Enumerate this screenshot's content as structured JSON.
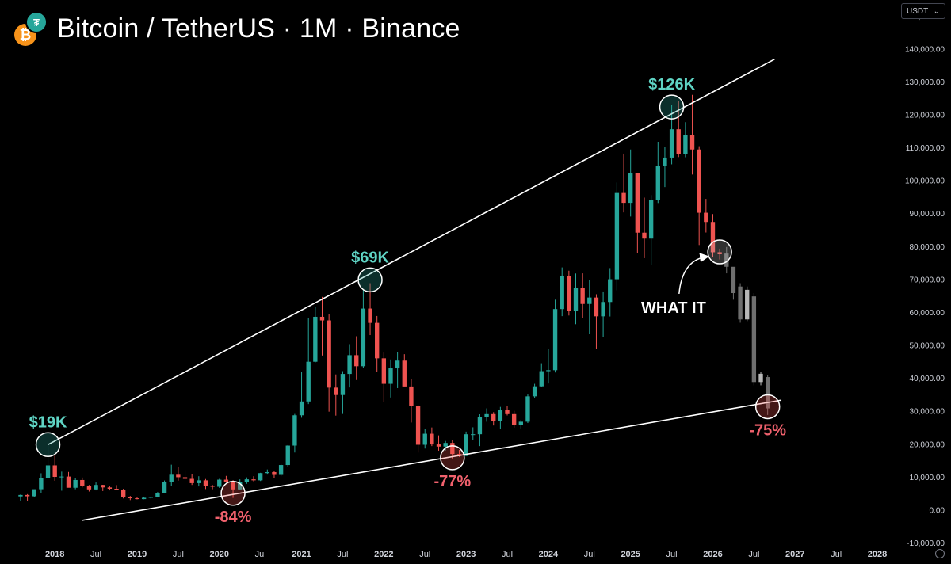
{
  "header": {
    "title": "Bitcoin / TetherUS · 1M · Binance",
    "base_logo": "bitcoin-logo-icon",
    "quote_logo": "tether-logo-icon"
  },
  "currency_selector": {
    "value": "USDT",
    "icon": "chevron-down-icon"
  },
  "settings_icon": "gear-icon",
  "colors": {
    "up": "#26a69a",
    "down": "#ef5350",
    "projection": "#8a8a8a",
    "trendline": "#ffffff",
    "peak_label": "#5fd4c4",
    "trough_label": "#f0616d",
    "background": "#000000"
  },
  "chart_data": {
    "type": "candlestick",
    "timeframe": "1M",
    "ylim": [
      -10000,
      155000
    ],
    "y_ticks": [
      "150,000.00",
      "140,000.00",
      "130,000.00",
      "120,000.00",
      "110,000.00",
      "100,000.00",
      "90,000.00",
      "80,000.00",
      "70,000.00",
      "60,000.00",
      "50,000.00",
      "40,000.00",
      "30,000.00",
      "20,000.00",
      "10,000.00",
      "0.00",
      "-10,000.00"
    ],
    "y_tick_values": [
      150000,
      140000,
      130000,
      120000,
      110000,
      100000,
      90000,
      80000,
      70000,
      60000,
      50000,
      40000,
      30000,
      20000,
      10000,
      0,
      -10000
    ],
    "x_ticks": [
      {
        "label": "2018",
        "date": "2018-01"
      },
      {
        "label": "Jul",
        "date": "2018-07"
      },
      {
        "label": "2019",
        "date": "2019-01"
      },
      {
        "label": "Jul",
        "date": "2019-07"
      },
      {
        "label": "2020",
        "date": "2020-01"
      },
      {
        "label": "Jul",
        "date": "2020-07"
      },
      {
        "label": "2021",
        "date": "2021-01"
      },
      {
        "label": "Jul",
        "date": "2021-07"
      },
      {
        "label": "2022",
        "date": "2022-01"
      },
      {
        "label": "Jul",
        "date": "2022-07"
      },
      {
        "label": "2023",
        "date": "2023-01"
      },
      {
        "label": "Jul",
        "date": "2023-07"
      },
      {
        "label": "2024",
        "date": "2024-01"
      },
      {
        "label": "Jul",
        "date": "2024-07"
      },
      {
        "label": "2025",
        "date": "2025-01"
      },
      {
        "label": "Jul",
        "date": "2025-07"
      },
      {
        "label": "2026",
        "date": "2026-01"
      },
      {
        "label": "Jul",
        "date": "2026-07"
      },
      {
        "label": "2027",
        "date": "2027-01"
      },
      {
        "label": "Jul",
        "date": "2027-07"
      },
      {
        "label": "2028",
        "date": "2028-01"
      }
    ],
    "x_range": [
      "2017-05",
      "2028-04"
    ],
    "candles": [
      {
        "t": "2017-08",
        "o": 4260,
        "h": 4850,
        "l": 2800,
        "c": 4700
      },
      {
        "t": "2017-09",
        "o": 4700,
        "h": 4950,
        "l": 2900,
        "c": 4300
      },
      {
        "t": "2017-10",
        "o": 4300,
        "h": 6400,
        "l": 4100,
        "c": 6450
      },
      {
        "t": "2017-11",
        "o": 6450,
        "h": 11300,
        "l": 5400,
        "c": 9900
      },
      {
        "t": "2017-12",
        "o": 9900,
        "h": 19800,
        "l": 9800,
        "c": 13700
      },
      {
        "t": "2018-01",
        "o": 13700,
        "h": 17200,
        "l": 9000,
        "c": 10200
      },
      {
        "t": "2018-02",
        "o": 10200,
        "h": 11800,
        "l": 6000,
        "c": 10300
      },
      {
        "t": "2018-03",
        "o": 10300,
        "h": 11700,
        "l": 7300,
        "c": 6900
      },
      {
        "t": "2018-04",
        "o": 6900,
        "h": 9750,
        "l": 6450,
        "c": 9250
      },
      {
        "t": "2018-05",
        "o": 9250,
        "h": 10000,
        "l": 7000,
        "c": 7500
      },
      {
        "t": "2018-06",
        "o": 7500,
        "h": 7750,
        "l": 5750,
        "c": 6400
      },
      {
        "t": "2018-07",
        "o": 6400,
        "h": 8500,
        "l": 6100,
        "c": 7750
      },
      {
        "t": "2018-08",
        "o": 7750,
        "h": 7800,
        "l": 5900,
        "c": 7000
      },
      {
        "t": "2018-09",
        "o": 7000,
        "h": 7400,
        "l": 6100,
        "c": 6600
      },
      {
        "t": "2018-10",
        "o": 6600,
        "h": 7700,
        "l": 6200,
        "c": 6350
      },
      {
        "t": "2018-11",
        "o": 6350,
        "h": 6600,
        "l": 3650,
        "c": 4000
      },
      {
        "t": "2018-12",
        "o": 4000,
        "h": 4400,
        "l": 3150,
        "c": 3700
      },
      {
        "t": "2019-01",
        "o": 3700,
        "h": 4150,
        "l": 3350,
        "c": 3450
      },
      {
        "t": "2019-02",
        "o": 3450,
        "h": 4200,
        "l": 3400,
        "c": 3850
      },
      {
        "t": "2019-03",
        "o": 3850,
        "h": 4150,
        "l": 3650,
        "c": 4100
      },
      {
        "t": "2019-04",
        "o": 4100,
        "h": 5600,
        "l": 4050,
        "c": 5350
      },
      {
        "t": "2019-05",
        "o": 5350,
        "h": 9100,
        "l": 5300,
        "c": 8550
      },
      {
        "t": "2019-06",
        "o": 8550,
        "h": 13900,
        "l": 7450,
        "c": 10850
      },
      {
        "t": "2019-07",
        "o": 10850,
        "h": 13150,
        "l": 9050,
        "c": 10100
      },
      {
        "t": "2019-08",
        "o": 10100,
        "h": 12300,
        "l": 9350,
        "c": 9600
      },
      {
        "t": "2019-09",
        "o": 9600,
        "h": 10950,
        "l": 7750,
        "c": 8300
      },
      {
        "t": "2019-10",
        "o": 8300,
        "h": 10400,
        "l": 7300,
        "c": 9150
      },
      {
        "t": "2019-11",
        "o": 9150,
        "h": 9550,
        "l": 6500,
        "c": 7550
      },
      {
        "t": "2019-12",
        "o": 7550,
        "h": 7750,
        "l": 6450,
        "c": 7200
      },
      {
        "t": "2020-01",
        "o": 7200,
        "h": 9600,
        "l": 6850,
        "c": 9350
      },
      {
        "t": "2020-02",
        "o": 9350,
        "h": 10500,
        "l": 8450,
        "c": 8550
      },
      {
        "t": "2020-03",
        "o": 8550,
        "h": 9200,
        "l": 3800,
        "c": 6400
      },
      {
        "t": "2020-04",
        "o": 6400,
        "h": 9450,
        "l": 6150,
        "c": 8600
      },
      {
        "t": "2020-05",
        "o": 8600,
        "h": 10050,
        "l": 8100,
        "c": 9450
      },
      {
        "t": "2020-06",
        "o": 9450,
        "h": 10400,
        "l": 8850,
        "c": 9150
      },
      {
        "t": "2020-07",
        "o": 9150,
        "h": 11450,
        "l": 8950,
        "c": 11350
      },
      {
        "t": "2020-08",
        "o": 11350,
        "h": 12450,
        "l": 10900,
        "c": 11650
      },
      {
        "t": "2020-09",
        "o": 11650,
        "h": 12050,
        "l": 9850,
        "c": 10800
      },
      {
        "t": "2020-10",
        "o": 10800,
        "h": 14100,
        "l": 10400,
        "c": 13800
      },
      {
        "t": "2020-11",
        "o": 13800,
        "h": 19850,
        "l": 13250,
        "c": 19700
      },
      {
        "t": "2020-12",
        "o": 19700,
        "h": 29300,
        "l": 17600,
        "c": 28900
      },
      {
        "t": "2021-01",
        "o": 28900,
        "h": 41950,
        "l": 28150,
        "c": 33100
      },
      {
        "t": "2021-02",
        "o": 33100,
        "h": 58350,
        "l": 32300,
        "c": 45150
      },
      {
        "t": "2021-03",
        "o": 45150,
        "h": 61800,
        "l": 44950,
        "c": 58800
      },
      {
        "t": "2021-04",
        "o": 58800,
        "h": 64850,
        "l": 47050,
        "c": 57700
      },
      {
        "t": "2021-05",
        "o": 57700,
        "h": 59600,
        "l": 30000,
        "c": 37300
      },
      {
        "t": "2021-06",
        "o": 37300,
        "h": 41300,
        "l": 28800,
        "c": 35050
      },
      {
        "t": "2021-07",
        "o": 35050,
        "h": 42300,
        "l": 29300,
        "c": 41450
      },
      {
        "t": "2021-08",
        "o": 41450,
        "h": 50500,
        "l": 37350,
        "c": 47150
      },
      {
        "t": "2021-09",
        "o": 47150,
        "h": 52900,
        "l": 39600,
        "c": 43800
      },
      {
        "t": "2021-10",
        "o": 43800,
        "h": 67000,
        "l": 43300,
        "c": 61300
      },
      {
        "t": "2021-11",
        "o": 61300,
        "h": 69000,
        "l": 53250,
        "c": 56950
      },
      {
        "t": "2021-12",
        "o": 56950,
        "h": 59050,
        "l": 42000,
        "c": 46200
      },
      {
        "t": "2022-01",
        "o": 46200,
        "h": 47950,
        "l": 32900,
        "c": 38450
      },
      {
        "t": "2022-02",
        "o": 38450,
        "h": 45850,
        "l": 34300,
        "c": 43150
      },
      {
        "t": "2022-03",
        "o": 43150,
        "h": 48200,
        "l": 37150,
        "c": 45500
      },
      {
        "t": "2022-04",
        "o": 45500,
        "h": 47450,
        "l": 37700,
        "c": 37650
      },
      {
        "t": "2022-05",
        "o": 37650,
        "h": 40000,
        "l": 26700,
        "c": 31800
      },
      {
        "t": "2022-06",
        "o": 31800,
        "h": 31950,
        "l": 17600,
        "c": 19950
      },
      {
        "t": "2022-07",
        "o": 19950,
        "h": 24650,
        "l": 18800,
        "c": 23300
      },
      {
        "t": "2022-08",
        "o": 23300,
        "h": 25200,
        "l": 19550,
        "c": 20050
      },
      {
        "t": "2022-09",
        "o": 20050,
        "h": 22800,
        "l": 18150,
        "c": 19400
      },
      {
        "t": "2022-10",
        "o": 19400,
        "h": 21100,
        "l": 18200,
        "c": 20500
      },
      {
        "t": "2022-11",
        "o": 20500,
        "h": 21450,
        "l": 15500,
        "c": 17150
      },
      {
        "t": "2022-12",
        "o": 17150,
        "h": 18400,
        "l": 16250,
        "c": 16550
      },
      {
        "t": "2023-01",
        "o": 16550,
        "h": 23950,
        "l": 16500,
        "c": 23150
      },
      {
        "t": "2023-02",
        "o": 23150,
        "h": 25250,
        "l": 21350,
        "c": 23150
      },
      {
        "t": "2023-03",
        "o": 23150,
        "h": 29200,
        "l": 19550,
        "c": 28450
      },
      {
        "t": "2023-04",
        "o": 28450,
        "h": 31000,
        "l": 26950,
        "c": 29250
      },
      {
        "t": "2023-05",
        "o": 29250,
        "h": 29850,
        "l": 25800,
        "c": 27200
      },
      {
        "t": "2023-06",
        "o": 27200,
        "h": 31450,
        "l": 24800,
        "c": 30450
      },
      {
        "t": "2023-07",
        "o": 30450,
        "h": 31800,
        "l": 28850,
        "c": 29250
      },
      {
        "t": "2023-08",
        "o": 29250,
        "h": 30250,
        "l": 25150,
        "c": 25950
      },
      {
        "t": "2023-09",
        "o": 25950,
        "h": 27500,
        "l": 24900,
        "c": 26950
      },
      {
        "t": "2023-10",
        "o": 26950,
        "h": 35200,
        "l": 26550,
        "c": 34650
      },
      {
        "t": "2023-11",
        "o": 34650,
        "h": 38450,
        "l": 34100,
        "c": 37700
      },
      {
        "t": "2023-12",
        "o": 37700,
        "h": 44700,
        "l": 37600,
        "c": 42300
      },
      {
        "t": "2024-01",
        "o": 42300,
        "h": 48950,
        "l": 38550,
        "c": 42600
      },
      {
        "t": "2024-02",
        "o": 42600,
        "h": 64000,
        "l": 41900,
        "c": 61150
      },
      {
        "t": "2024-03",
        "o": 61150,
        "h": 73800,
        "l": 59000,
        "c": 71300
      },
      {
        "t": "2024-04",
        "o": 71300,
        "h": 72800,
        "l": 59200,
        "c": 60650
      },
      {
        "t": "2024-05",
        "o": 60650,
        "h": 71950,
        "l": 56550,
        "c": 67500
      },
      {
        "t": "2024-06",
        "o": 67500,
        "h": 72000,
        "l": 58400,
        "c": 62700
      },
      {
        "t": "2024-07",
        "o": 62700,
        "h": 70000,
        "l": 53500,
        "c": 64650
      },
      {
        "t": "2024-08",
        "o": 64650,
        "h": 65650,
        "l": 49000,
        "c": 58950
      },
      {
        "t": "2024-09",
        "o": 58950,
        "h": 66500,
        "l": 52550,
        "c": 63300
      },
      {
        "t": "2024-10",
        "o": 63300,
        "h": 73600,
        "l": 58900,
        "c": 70200
      },
      {
        "t": "2024-11",
        "o": 70200,
        "h": 99600,
        "l": 66850,
        "c": 96400
      },
      {
        "t": "2024-12",
        "o": 96400,
        "h": 108350,
        "l": 90500,
        "c": 93400
      },
      {
        "t": "2025-01",
        "o": 93400,
        "h": 109600,
        "l": 89250,
        "c": 102400
      },
      {
        "t": "2025-02",
        "o": 102400,
        "h": 102500,
        "l": 78250,
        "c": 84350
      },
      {
        "t": "2025-03",
        "o": 84350,
        "h": 95000,
        "l": 76600,
        "c": 82550
      },
      {
        "t": "2025-04",
        "o": 82550,
        "h": 95750,
        "l": 74500,
        "c": 94200
      },
      {
        "t": "2025-05",
        "o": 94200,
        "h": 111950,
        "l": 93350,
        "c": 104600
      },
      {
        "t": "2025-06",
        "o": 104600,
        "h": 110500,
        "l": 98200,
        "c": 107150
      },
      {
        "t": "2025-07",
        "o": 107150,
        "h": 123200,
        "l": 105100,
        "c": 115750
      },
      {
        "t": "2025-08",
        "o": 115750,
        "h": 124450,
        "l": 107300,
        "c": 108250
      },
      {
        "t": "2025-09",
        "o": 108250,
        "h": 117900,
        "l": 107250,
        "c": 114050
      },
      {
        "t": "2025-10",
        "o": 114050,
        "h": 126200,
        "l": 102000,
        "c": 109600
      },
      {
        "t": "2025-11",
        "o": 109600,
        "h": 110600,
        "l": 80600,
        "c": 90400
      },
      {
        "t": "2025-12",
        "o": 90400,
        "h": 94600,
        "l": 84400,
        "c": 87600
      },
      {
        "t": "2026-01",
        "o": 87600,
        "h": 90000,
        "l": 77000,
        "c": 78400
      },
      {
        "t": "2026-02",
        "o": 78400,
        "h": 79500,
        "l": 76200,
        "c": 77800
      }
    ],
    "projection_candles": [
      {
        "t": "2026-03",
        "o": 78000,
        "h": 80000,
        "l": 72000,
        "c": 74000
      },
      {
        "t": "2026-04",
        "o": 74000,
        "h": 70000,
        "l": 64000,
        "c": 66000
      },
      {
        "t": "2026-05",
        "o": 68000,
        "h": 69000,
        "l": 57000,
        "c": 58000
      },
      {
        "t": "2026-06",
        "o": 58000,
        "h": 68000,
        "l": 57500,
        "c": 67000
      },
      {
        "t": "2026-07",
        "o": 65000,
        "h": 66000,
        "l": 38000,
        "c": 39000
      },
      {
        "t": "2026-08",
        "o": 39000,
        "h": 42000,
        "l": 38000,
        "c": 41500
      },
      {
        "t": "2026-09",
        "o": 40500,
        "h": 41000,
        "l": 29000,
        "c": 31000
      }
    ],
    "trendlines": [
      {
        "from": {
          "t": "2017-12",
          "v": 20000
        },
        "to": {
          "t": "2026-10",
          "v": 137000
        }
      },
      {
        "from": {
          "t": "2018-05",
          "v": -3000
        },
        "to": {
          "t": "2026-11",
          "v": 33500
        }
      }
    ],
    "peak_markers": [
      {
        "t": "2017-12",
        "v": 20000,
        "label": "$19K"
      },
      {
        "t": "2021-11",
        "v": 70000,
        "label": "$69K"
      },
      {
        "t": "2025-07",
        "v": 122500,
        "label": "$126K"
      }
    ],
    "trough_markers": [
      {
        "t": "2020-03",
        "v": 5200,
        "label": "-84%"
      },
      {
        "t": "2022-11",
        "v": 16000,
        "label": "-77%"
      },
      {
        "t": "2026-09",
        "v": 31500,
        "label": "-75%"
      }
    ],
    "current_marker": {
      "t": "2026-02",
      "v": 78500
    },
    "annotation": {
      "text": "WHAT IT",
      "t": "2025-12",
      "v": 60000,
      "arrow_to": {
        "t": "2026-02",
        "v": 78500
      }
    }
  }
}
